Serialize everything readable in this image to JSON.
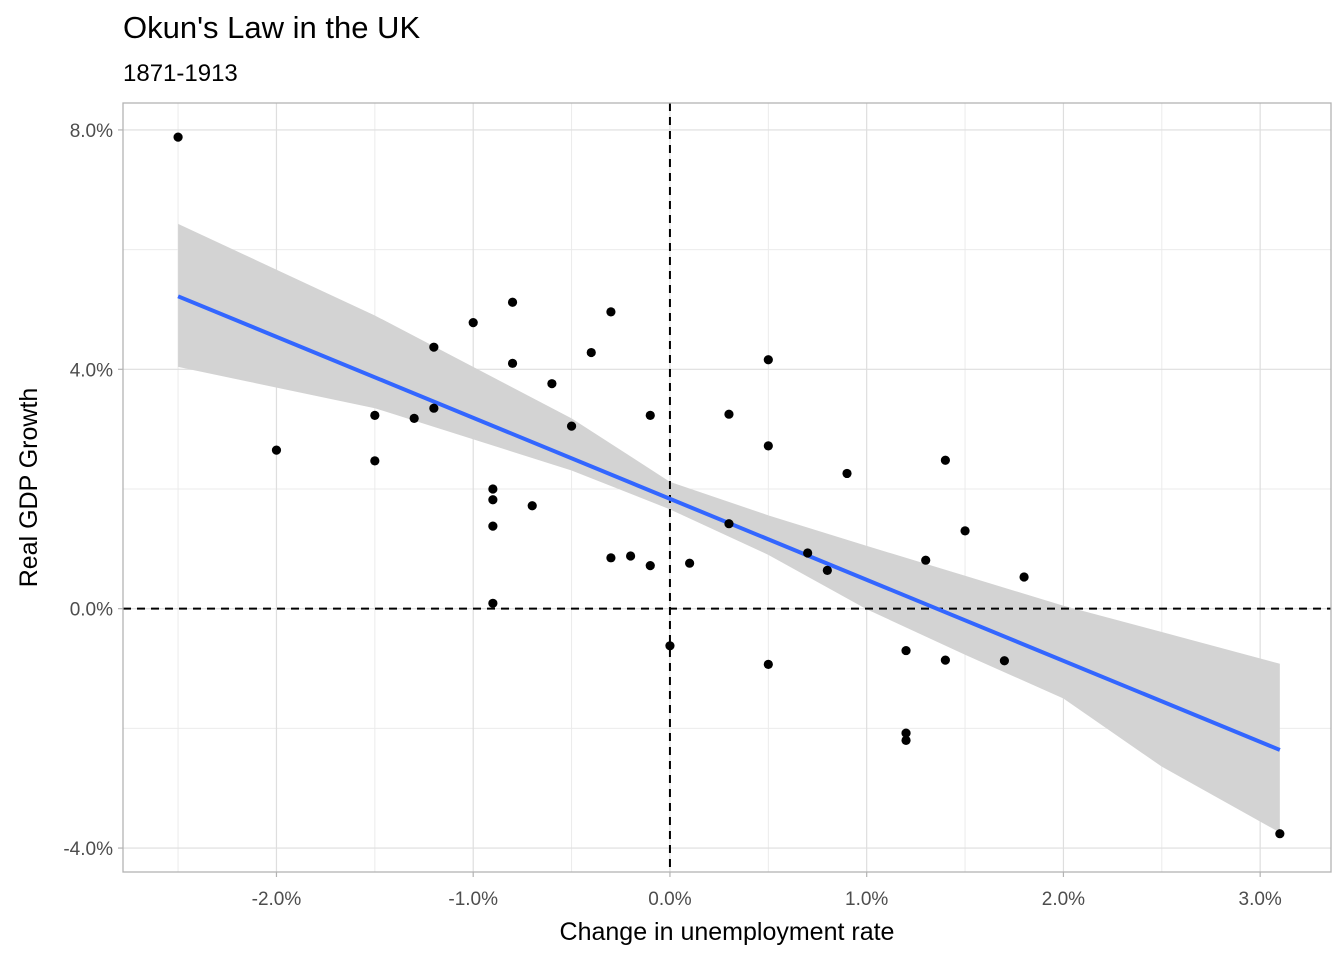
{
  "title": "Okun's Law in the UK",
  "subtitle": "1871-1913",
  "chart_data": {
    "type": "scatter",
    "title": "Okun's Law in the UK",
    "subtitle": "1871-1913",
    "xlabel": "Change in unemployment rate",
    "ylabel": "Real GDP Growth",
    "xlim": [
      -2.78,
      3.36
    ],
    "ylim": [
      -4.4,
      8.45
    ],
    "grid": true,
    "x_ticks": [
      -2.0,
      -1.0,
      0.0,
      1.0,
      2.0,
      3.0
    ],
    "x_tick_labels": [
      "-2.0%",
      "-1.0%",
      "0.0%",
      "1.0%",
      "2.0%",
      "3.0%"
    ],
    "y_ticks": [
      -4.0,
      0.0,
      4.0,
      8.0
    ],
    "y_tick_labels": [
      "-4.0%",
      "0.0%",
      "4.0%",
      "8.0%"
    ],
    "reference_lines": {
      "x": 0.0,
      "y": 0.0,
      "style": "dashed"
    },
    "points_color": "#000000",
    "points": [
      [
        -2.5,
        7.88
      ],
      [
        -2.0,
        2.65
      ],
      [
        -1.5,
        3.23
      ],
      [
        -1.5,
        2.47
      ],
      [
        -1.3,
        3.18
      ],
      [
        -1.2,
        4.37
      ],
      [
        -1.2,
        3.35
      ],
      [
        -1.0,
        4.78
      ],
      [
        -0.9,
        2.0
      ],
      [
        -0.9,
        1.82
      ],
      [
        -0.9,
        1.38
      ],
      [
        -0.9,
        0.09
      ],
      [
        -0.8,
        5.12
      ],
      [
        -0.8,
        4.1
      ],
      [
        -0.7,
        1.72
      ],
      [
        -0.6,
        3.76
      ],
      [
        -0.5,
        3.05
      ],
      [
        -0.4,
        4.28
      ],
      [
        -0.3,
        4.96
      ],
      [
        -0.3,
        0.85
      ],
      [
        -0.2,
        0.88
      ],
      [
        -0.1,
        3.23
      ],
      [
        -0.1,
        0.72
      ],
      [
        0.0,
        -0.62
      ],
      [
        0.1,
        0.76
      ],
      [
        0.3,
        3.25
      ],
      [
        0.3,
        1.42
      ],
      [
        0.5,
        4.16
      ],
      [
        0.5,
        2.72
      ],
      [
        0.5,
        -0.93
      ],
      [
        0.7,
        0.93
      ],
      [
        0.8,
        0.64
      ],
      [
        0.9,
        2.26
      ],
      [
        1.2,
        -0.7
      ],
      [
        1.2,
        -2.08
      ],
      [
        1.2,
        -2.2
      ],
      [
        1.3,
        0.81
      ],
      [
        1.4,
        2.48
      ],
      [
        1.4,
        -0.86
      ],
      [
        1.5,
        1.3
      ],
      [
        1.7,
        -0.87
      ],
      [
        1.8,
        0.53
      ],
      [
        3.1,
        -3.76
      ]
    ],
    "fit": {
      "type": "linear",
      "color": "#3366ff",
      "band_color": "#d3d3d3",
      "x_range": [
        -2.5,
        3.1
      ],
      "line_y": [
        5.22,
        -2.36
      ],
      "band": [
        {
          "x": -2.5,
          "lower": 4.04,
          "upper": 6.43
        },
        {
          "x": -1.5,
          "lower": 3.35,
          "upper": 4.9
        },
        {
          "x": -0.5,
          "lower": 2.31,
          "upper": 3.18
        },
        {
          "x": 0.0,
          "lower": 1.66,
          "upper": 2.12
        },
        {
          "x": 0.5,
          "lower": 0.9,
          "upper": 1.56
        },
        {
          "x": 1.0,
          "lower": -0.01,
          "upper": 1.05
        },
        {
          "x": 1.5,
          "lower": -0.77,
          "upper": 0.55
        },
        {
          "x": 2.0,
          "lower": -1.5,
          "upper": 0.05
        },
        {
          "x": 2.5,
          "lower": -2.64,
          "upper": -0.39
        },
        {
          "x": 3.1,
          "lower": -3.74,
          "upper": -0.92
        }
      ]
    }
  }
}
